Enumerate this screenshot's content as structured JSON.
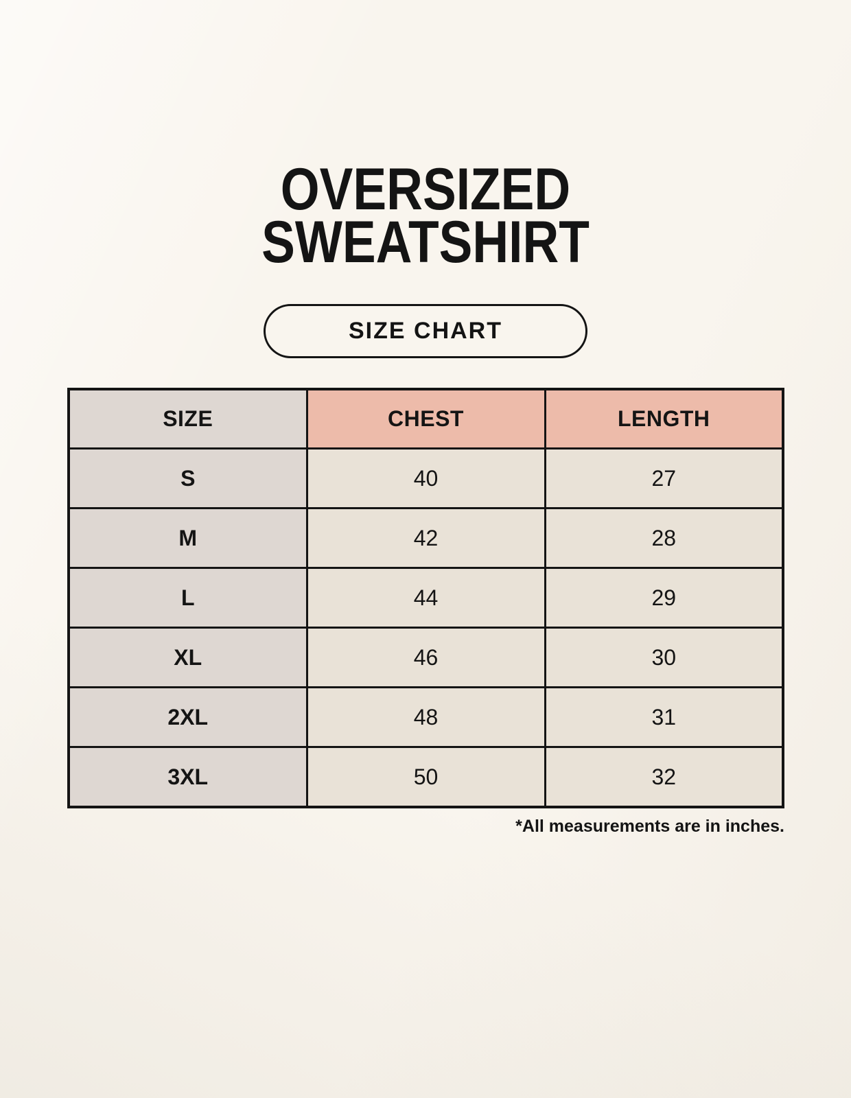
{
  "header": {
    "title_line1": "OVERSIZED",
    "title_line2": "SWEATSHIRT",
    "badge_label": "SIZE CHART"
  },
  "chart_data": {
    "type": "table",
    "title": "OVERSIZED SWEATSHIRT",
    "subtitle": "SIZE CHART",
    "columns": [
      "SIZE",
      "CHEST",
      "LENGTH"
    ],
    "rows": [
      [
        "S",
        "40",
        "27"
      ],
      [
        "M",
        "42",
        "28"
      ],
      [
        "L",
        "44",
        "29"
      ],
      [
        "XL",
        "46",
        "30"
      ],
      [
        "2XL",
        "48",
        "31"
      ],
      [
        "3XL",
        "50",
        "32"
      ]
    ],
    "footnote": "*All measurements are in inches.",
    "units": "inches"
  },
  "colors": {
    "page-bg": "#f9f5ee",
    "accent": "#edbbaa",
    "muted": "#ded7d2",
    "cell": "#e9e2d7",
    "ink": "#141414"
  }
}
